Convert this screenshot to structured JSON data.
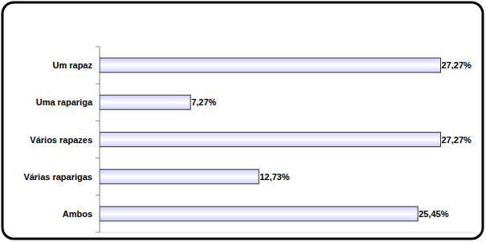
{
  "chart_data": {
    "type": "bar",
    "orientation": "horizontal",
    "categories": [
      "Um rapaz",
      "Uma rapariga",
      "Vários rapazes",
      "Várias raparigas",
      "Ambos"
    ],
    "values": [
      27.27,
      7.27,
      27.27,
      12.73,
      25.45
    ],
    "value_labels": [
      "27,27%",
      "7,27%",
      "27,27%",
      "12,73%",
      "25,45%"
    ],
    "xlim": [
      0,
      30
    ],
    "color": "#ccccff",
    "data_labels": true,
    "tick_labels": "y",
    "grid": false
  }
}
